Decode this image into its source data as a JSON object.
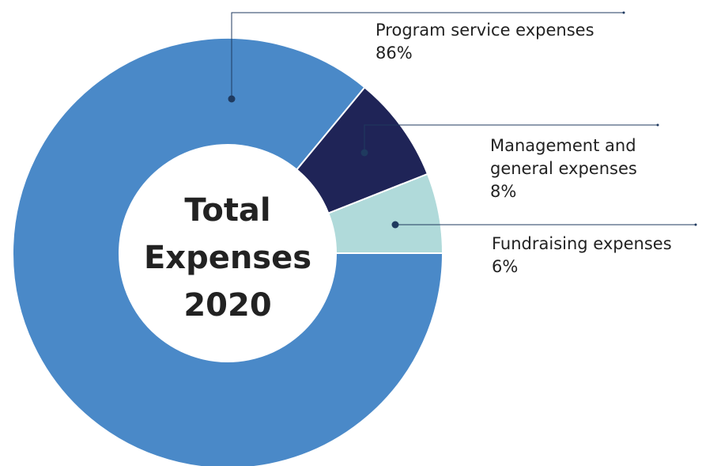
{
  "chart_data": {
    "type": "pie",
    "center_label": "Total Expenses 2020",
    "categories": [
      "Program service expenses",
      "Management and general expenses",
      "Fundraising expenses"
    ],
    "values": [
      86,
      8,
      6
    ],
    "value_labels": [
      "86%",
      "8%",
      "6%"
    ],
    "colors": [
      "#4a89c8",
      "#1f2457",
      "#b0dada"
    ]
  }
}
